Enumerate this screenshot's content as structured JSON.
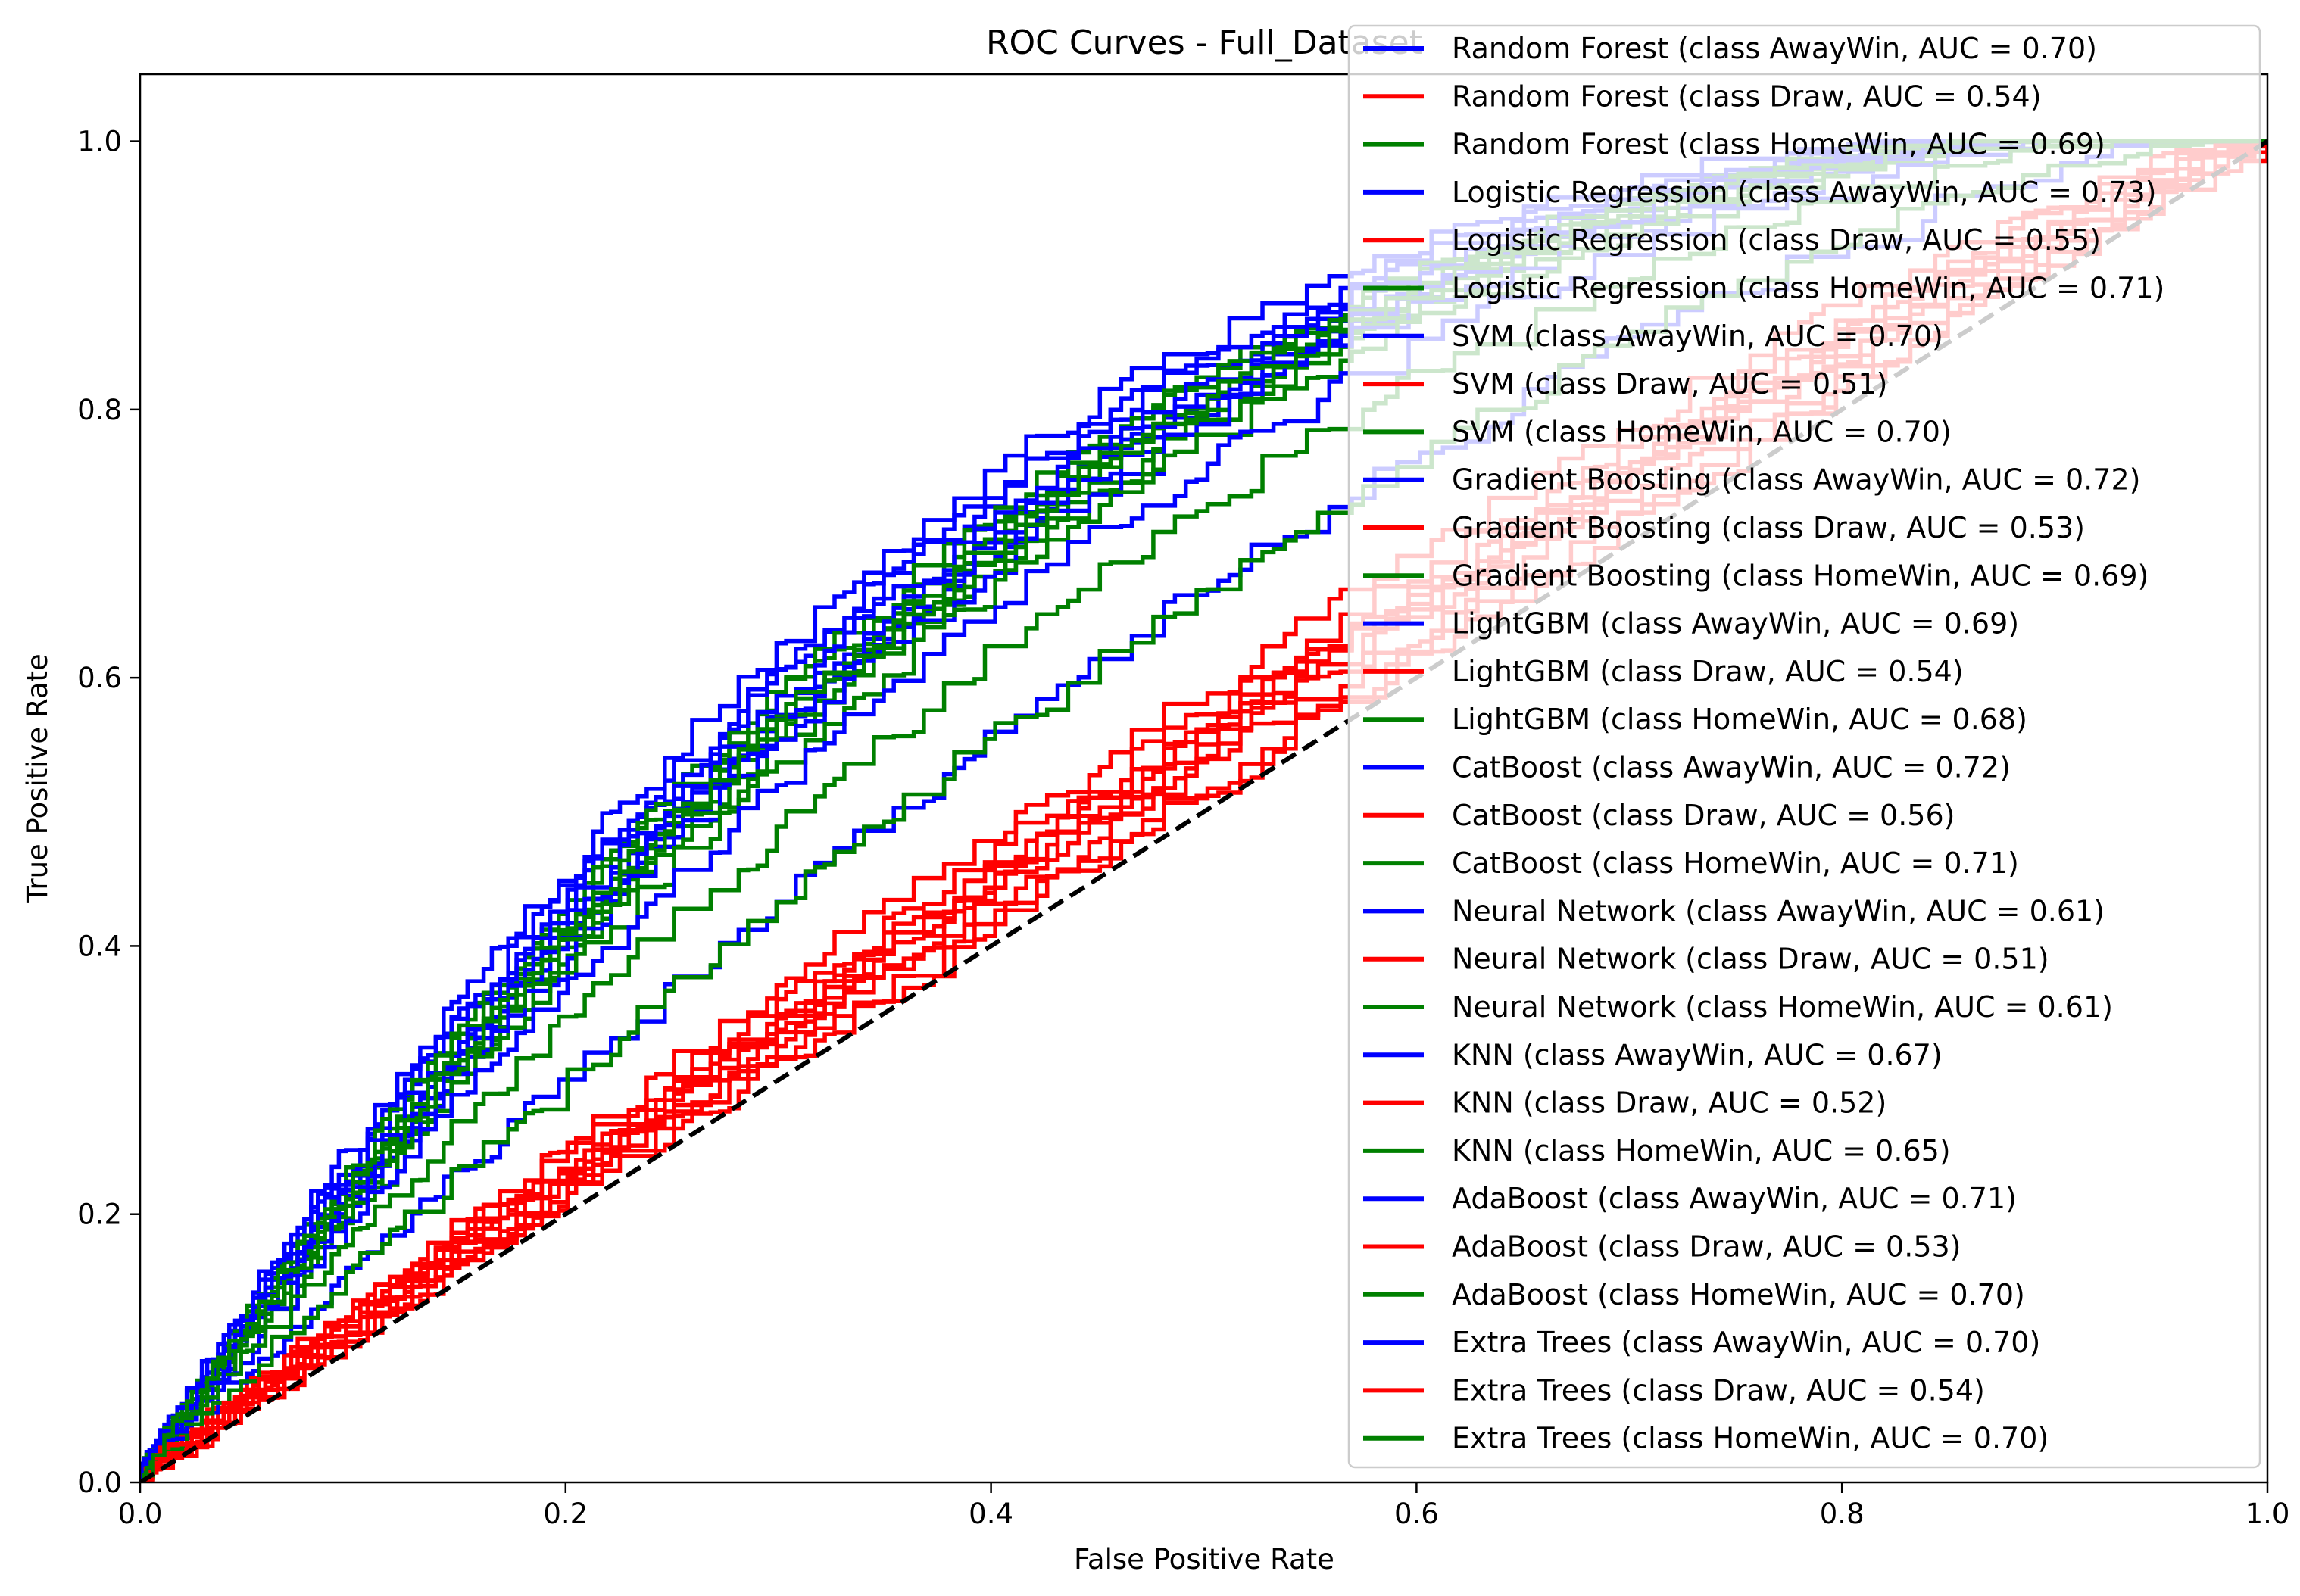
{
  "chart_data": {
    "type": "line",
    "title": "ROC Curves - Full_Dataset",
    "xlabel": "False Positive Rate",
    "ylabel": "True Positive Rate",
    "xlim": [
      0.0,
      1.0
    ],
    "ylim": [
      0.0,
      1.05
    ],
    "xticks": [
      "0.0",
      "0.2",
      "0.4",
      "0.6",
      "0.8",
      "1.0"
    ],
    "yticks": [
      "0.0",
      "0.2",
      "0.4",
      "0.6",
      "0.8",
      "1.0"
    ],
    "grid": false,
    "legend_position": "upper right",
    "colors": {
      "AwayWin": "#0000ff",
      "Draw": "#ff0000",
      "HomeWin": "#008000",
      "diagonal": "#000000"
    },
    "series": [
      {
        "name": "Random Forest (class AwayWin, AUC = 0.70)",
        "class": "AwayWin",
        "auc": 0.7
      },
      {
        "name": "Random Forest (class Draw, AUC = 0.54)",
        "class": "Draw",
        "auc": 0.54
      },
      {
        "name": "Random Forest (class HomeWin, AUC = 0.69)",
        "class": "HomeWin",
        "auc": 0.69
      },
      {
        "name": "Logistic Regression (class AwayWin, AUC = 0.73)",
        "class": "AwayWin",
        "auc": 0.73
      },
      {
        "name": "Logistic Regression (class Draw, AUC = 0.55)",
        "class": "Draw",
        "auc": 0.55
      },
      {
        "name": "Logistic Regression (class HomeWin, AUC = 0.71)",
        "class": "HomeWin",
        "auc": 0.71
      },
      {
        "name": "SVM (class AwayWin, AUC = 0.70)",
        "class": "AwayWin",
        "auc": 0.7
      },
      {
        "name": "SVM (class Draw, AUC = 0.51)",
        "class": "Draw",
        "auc": 0.51
      },
      {
        "name": "SVM (class HomeWin, AUC = 0.70)",
        "class": "HomeWin",
        "auc": 0.7
      },
      {
        "name": "Gradient Boosting (class AwayWin, AUC = 0.72)",
        "class": "AwayWin",
        "auc": 0.72
      },
      {
        "name": "Gradient Boosting (class Draw, AUC = 0.53)",
        "class": "Draw",
        "auc": 0.53
      },
      {
        "name": "Gradient Boosting (class HomeWin, AUC = 0.69)",
        "class": "HomeWin",
        "auc": 0.69
      },
      {
        "name": "LightGBM (class AwayWin, AUC = 0.69)",
        "class": "AwayWin",
        "auc": 0.69
      },
      {
        "name": "LightGBM (class Draw, AUC = 0.54)",
        "class": "Draw",
        "auc": 0.54
      },
      {
        "name": "LightGBM (class HomeWin, AUC = 0.68)",
        "class": "HomeWin",
        "auc": 0.68
      },
      {
        "name": "CatBoost (class AwayWin, AUC = 0.72)",
        "class": "AwayWin",
        "auc": 0.72
      },
      {
        "name": "CatBoost (class Draw, AUC = 0.56)",
        "class": "Draw",
        "auc": 0.56
      },
      {
        "name": "CatBoost (class HomeWin, AUC = 0.71)",
        "class": "HomeWin",
        "auc": 0.71
      },
      {
        "name": "Neural Network (class AwayWin, AUC = 0.61)",
        "class": "AwayWin",
        "auc": 0.61
      },
      {
        "name": "Neural Network (class Draw, AUC = 0.51)",
        "class": "Draw",
        "auc": 0.51
      },
      {
        "name": "Neural Network (class HomeWin, AUC = 0.61)",
        "class": "HomeWin",
        "auc": 0.61
      },
      {
        "name": "KNN (class AwayWin, AUC = 0.67)",
        "class": "AwayWin",
        "auc": 0.67
      },
      {
        "name": "KNN (class Draw, AUC = 0.52)",
        "class": "Draw",
        "auc": 0.52
      },
      {
        "name": "KNN (class HomeWin, AUC = 0.65)",
        "class": "HomeWin",
        "auc": 0.65
      },
      {
        "name": "AdaBoost (class AwayWin, AUC = 0.71)",
        "class": "AwayWin",
        "auc": 0.71
      },
      {
        "name": "AdaBoost (class Draw, AUC = 0.53)",
        "class": "Draw",
        "auc": 0.53
      },
      {
        "name": "AdaBoost (class HomeWin, AUC = 0.70)",
        "class": "HomeWin",
        "auc": 0.7
      },
      {
        "name": "Extra Trees (class AwayWin, AUC = 0.70)",
        "class": "AwayWin",
        "auc": 0.7
      },
      {
        "name": "Extra Trees (class Draw, AUC = 0.54)",
        "class": "Draw",
        "auc": 0.54
      },
      {
        "name": "Extra Trees (class HomeWin, AUC = 0.70)",
        "class": "HomeWin",
        "auc": 0.7
      }
    ]
  }
}
